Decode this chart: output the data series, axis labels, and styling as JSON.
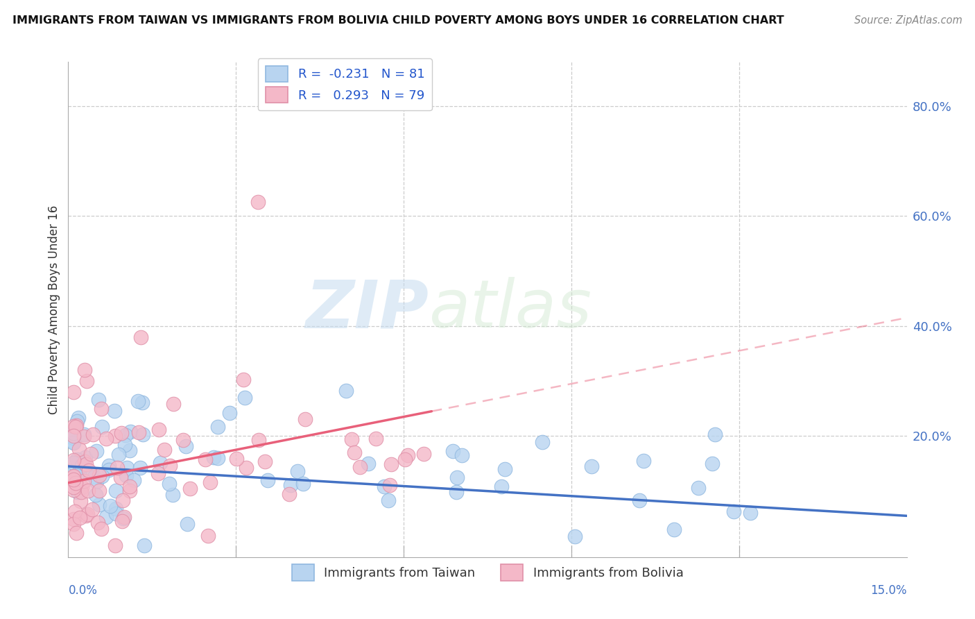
{
  "title": "IMMIGRANTS FROM TAIWAN VS IMMIGRANTS FROM BOLIVIA CHILD POVERTY AMONG BOYS UNDER 16 CORRELATION CHART",
  "source": "Source: ZipAtlas.com",
  "ylabel": "Child Poverty Among Boys Under 16",
  "legend_taiwan": {
    "R": "-0.231",
    "N": "81",
    "color": "#b8d4f0"
  },
  "legend_bolivia": {
    "R": "0.293",
    "N": "79",
    "color": "#f4b8c8"
  },
  "taiwan_scatter_color": "#b8d4f0",
  "bolivia_scatter_color": "#f4b8c8",
  "taiwan_line_color": "#4472c4",
  "bolivia_line_color": "#e8607a",
  "watermark_zip": "ZIP",
  "watermark_atlas": "atlas",
  "background_color": "#ffffff",
  "grid_color": "#cccccc",
  "xlim": [
    0.0,
    0.15
  ],
  "ylim": [
    -0.02,
    0.88
  ]
}
